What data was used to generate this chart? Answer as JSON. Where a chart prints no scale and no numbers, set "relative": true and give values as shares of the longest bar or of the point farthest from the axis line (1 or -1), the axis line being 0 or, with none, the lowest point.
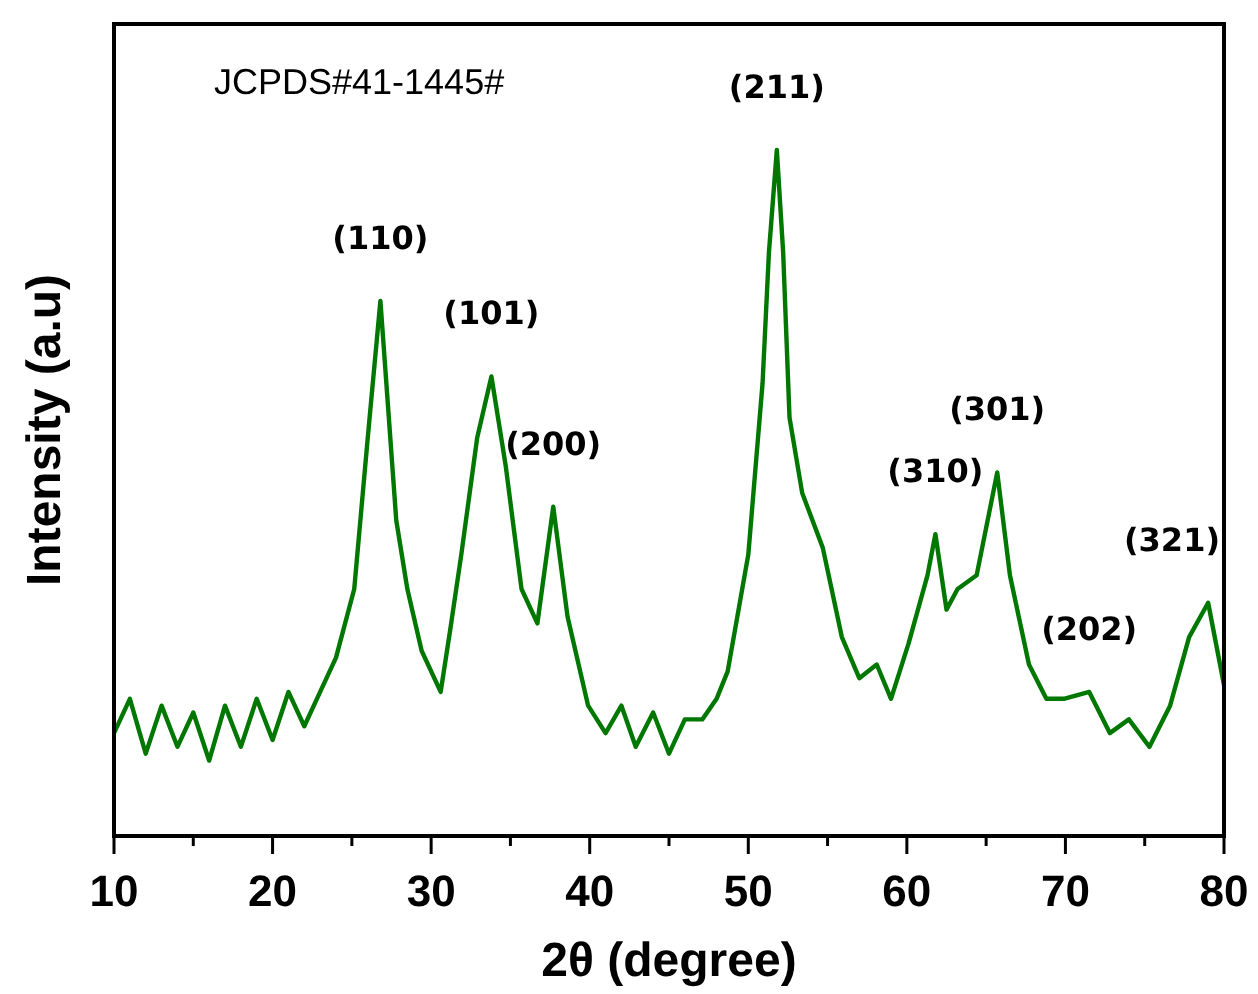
{
  "chart_data": {
    "type": "line",
    "relative": true,
    "xlabel": "2θ (degree)",
    "ylabel": "Intensity (a.u)",
    "xlim": [
      10,
      80
    ],
    "xticks": [
      10,
      {
        "value": 15,
        "label": null
      },
      20,
      {
        "value": 25,
        "label": null
      },
      30,
      {
        "value": 35,
        "label": null
      },
      40,
      {
        "value": 45,
        "label": null
      },
      50,
      {
        "value": 55,
        "label": null
      },
      60,
      {
        "value": 65,
        "label": null
      },
      70,
      {
        "value": 75,
        "label": null
      },
      80
    ],
    "tick_labels": "x",
    "grid": false,
    "marker": "none",
    "line_style": "solid",
    "series": [
      {
        "color": "#007700",
        "x": [
          10,
          11,
          12,
          13,
          14,
          15,
          16,
          17,
          18,
          19,
          20,
          21,
          22,
          23,
          24,
          25.15,
          26,
          26.8,
          27.8,
          28.5,
          29.4,
          30.6,
          31.2,
          31.9,
          32.9,
          33.8,
          34.7,
          35.7,
          36.7,
          37.7,
          38.6,
          39.9,
          41,
          42,
          42.9,
          44,
          45,
          46,
          47.1,
          48,
          48.7,
          50,
          50.9,
          51.3,
          51.8,
          52.2,
          52.6,
          53.4,
          54.7,
          55.9,
          57,
          58.1,
          59,
          60.1,
          61.3,
          61.8,
          62.5,
          63.2,
          64.4,
          65.7,
          66.5,
          67.7,
          68.8,
          69.9,
          71.5,
          72.8,
          74,
          75.3,
          76.6,
          77.8,
          79,
          80
        ],
        "values": [
          0.15,
          0.2,
          0.12,
          0.19,
          0.13,
          0.18,
          0.11,
          0.19,
          0.13,
          0.2,
          0.14,
          0.21,
          0.16,
          0.21,
          0.26,
          0.36,
          0.58,
          0.78,
          0.46,
          0.36,
          0.27,
          0.21,
          0.3,
          0.41,
          0.58,
          0.67,
          0.54,
          0.36,
          0.31,
          0.48,
          0.32,
          0.19,
          0.15,
          0.19,
          0.13,
          0.18,
          0.12,
          0.17,
          0.17,
          0.2,
          0.24,
          0.41,
          0.66,
          0.85,
          1,
          0.85,
          0.61,
          0.5,
          0.42,
          0.29,
          0.23,
          0.25,
          0.2,
          0.28,
          0.38,
          0.44,
          0.33,
          0.36,
          0.38,
          0.53,
          0.38,
          0.25,
          0.2,
          0.2,
          0.21,
          0.15,
          0.17,
          0.13,
          0.19,
          0.29,
          0.34,
          0.22
        ]
      }
    ],
    "annotations": [
      "JCPDS#41-1445#",
      {
        "text": "(110)",
        "x": 26.8,
        "y": 0.78
      },
      {
        "text": "(101)",
        "x": 33.8,
        "y": 0.67
      },
      {
        "text": "(200)",
        "x": 37.7,
        "y": 0.48
      },
      {
        "text": "(211)",
        "x": 51.8,
        "y": 1
      },
      {
        "text": "(310)",
        "x": 61.8,
        "y": 0.44
      },
      {
        "text": "(301)",
        "x": 65.7,
        "y": 0.53
      },
      {
        "text": "(202)",
        "x": 71.5,
        "y": 0.21
      },
      {
        "text": "(321)",
        "x": 79,
        "y": 0.34
      }
    ]
  }
}
